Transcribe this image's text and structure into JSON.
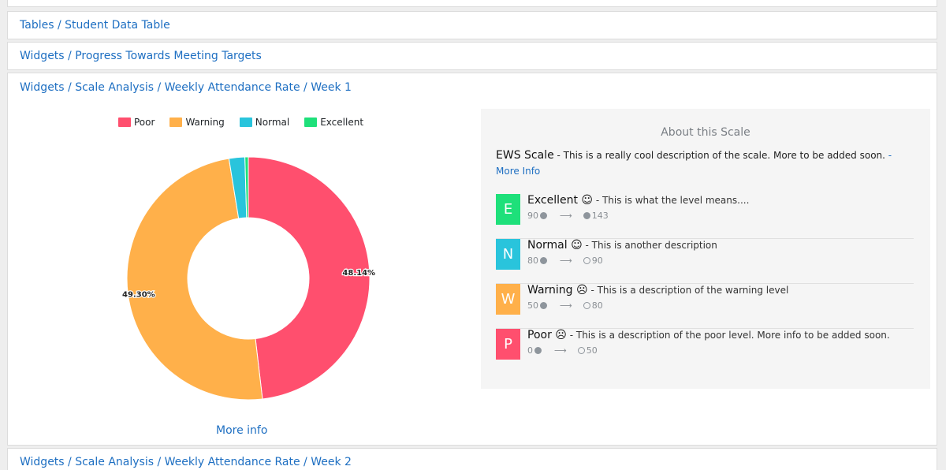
{
  "headers": {
    "tables": "Tables / Student Data Table",
    "progress": "Widgets / Progress Towards Meeting Targets",
    "week1": "Widgets / Scale Analysis / Weekly Attendance Rate / Week 1",
    "week2": "Widgets / Scale Analysis / Weekly Attendance Rate / Week 2"
  },
  "chart_data": {
    "type": "pie",
    "donut": true,
    "categories": [
      "Poor",
      "Warning",
      "Normal",
      "Excellent"
    ],
    "values": [
      48.14,
      49.3,
      2.11,
      0.45
    ],
    "colors": [
      "#ff4f6e",
      "#ffb04a",
      "#29c4dc",
      "#1ee07a"
    ],
    "data_labels": [
      "48.14%",
      "49.30%",
      "",
      ""
    ],
    "legend_position": "top"
  },
  "chart_link": "More info",
  "about": {
    "title": "About this Scale",
    "scale_name": "EWS Scale",
    "scale_desc": " - This is a really cool description of the scale. More to be added soon. ",
    "more_link": "- More Info",
    "levels": [
      {
        "letter": "E",
        "name": "Excellent",
        "face": "☺",
        "desc": " - This is what the level means....",
        "from": "90",
        "to": "143",
        "from_dot": "filled",
        "to_dot": "filled",
        "color": "#1ee07a"
      },
      {
        "letter": "N",
        "name": "Normal",
        "face": "☺",
        "desc": " - This is another description",
        "from": "80",
        "to": "90",
        "from_dot": "filled",
        "to_dot": "open",
        "color": "#29c4dc"
      },
      {
        "letter": "W",
        "name": "Warning",
        "face": "☹",
        "desc": " - This is a description of the warning level",
        "from": "50",
        "to": "80",
        "from_dot": "filled",
        "to_dot": "open",
        "color": "#ffb04a"
      },
      {
        "letter": "P",
        "name": "Poor",
        "face": "☹",
        "desc": " - This is a description of the poor level. More info to be added soon.",
        "from": "0",
        "to": "50",
        "from_dot": "filled",
        "to_dot": "open",
        "color": "#ff4f6e"
      }
    ],
    "arrow": "⟶"
  }
}
